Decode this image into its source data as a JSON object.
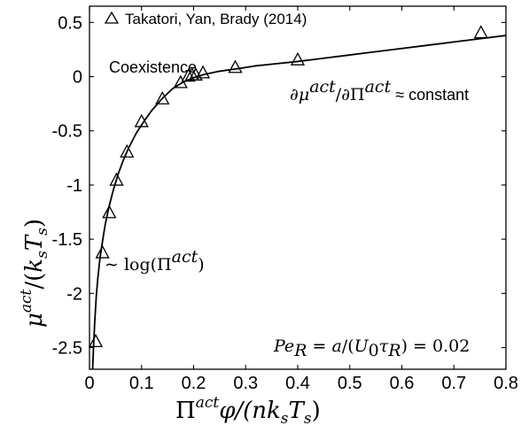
{
  "chart_data": {
    "type": "scatter",
    "xlabel": "Π^act φ/(nk_sT_s)",
    "ylabel": "μ^act/(k_sT_s)",
    "xlim": [
      0,
      0.8
    ],
    "ylim": [
      -2.7,
      0.65
    ],
    "x_ticks": [
      0,
      0.1,
      0.2,
      0.3,
      0.4,
      0.5,
      0.6,
      0.7,
      0.8
    ],
    "x_tick_labels": [
      "0",
      "0.1",
      "0.2",
      "0.3",
      "0.4",
      "0.5",
      "0.6",
      "0.7",
      "0.8"
    ],
    "y_ticks": [
      0.5,
      0,
      -0.5,
      -1,
      -1.5,
      -2,
      -2.5
    ],
    "y_tick_labels": [
      "0.5",
      "0",
      "-0.5",
      "-1",
      "-1.5",
      "-2",
      "-2.5"
    ],
    "grid": false,
    "legend": {
      "placement": "top-left",
      "entries": [
        "Takatori, Yan, Brady (2014)"
      ]
    },
    "series": [
      {
        "name": "Takatori, Yan, Brady (2014)",
        "marker": "triangle-open",
        "x": [
          0.012,
          0.025,
          0.038,
          0.052,
          0.072,
          0.1,
          0.14,
          0.175,
          0.19,
          0.197,
          0.204,
          0.218,
          0.28,
          0.4,
          0.752
        ],
        "y": [
          -2.45,
          -1.63,
          -1.26,
          -0.96,
          -0.7,
          -0.42,
          -0.21,
          -0.06,
          0.0,
          0.01,
          0.01,
          0.03,
          0.08,
          0.15,
          0.4
        ]
      }
    ],
    "fit_curve": {
      "style": "solid",
      "x": [
        0.006,
        0.008,
        0.01,
        0.013,
        0.016,
        0.02,
        0.025,
        0.03,
        0.037,
        0.045,
        0.055,
        0.065,
        0.075,
        0.09,
        0.105,
        0.12,
        0.14,
        0.16,
        0.18,
        0.2,
        0.22,
        0.25,
        0.28,
        0.32,
        0.36,
        0.4,
        0.45,
        0.5,
        0.55,
        0.6,
        0.65,
        0.7,
        0.75,
        0.8
      ],
      "y": [
        -2.7,
        -2.47,
        -2.27,
        -2.03,
        -1.86,
        -1.68,
        -1.52,
        -1.37,
        -1.21,
        -1.06,
        -0.9,
        -0.77,
        -0.66,
        -0.52,
        -0.41,
        -0.31,
        -0.2,
        -0.11,
        -0.05,
        -0.01,
        0.02,
        0.05,
        0.07,
        0.1,
        0.12,
        0.14,
        0.17,
        0.2,
        0.23,
        0.26,
        0.29,
        0.32,
        0.35,
        0.38
      ]
    },
    "annotations": {
      "coexistence": "Coexistence",
      "log_prefix": "∼ log(Π",
      "log_sup": "act",
      "log_suffix": ")",
      "slope_text": "∂μ^act/∂Π^act ≈ constant",
      "pe_text": "Pe_R = a/(U_0τ_R) = 0.02"
    }
  }
}
